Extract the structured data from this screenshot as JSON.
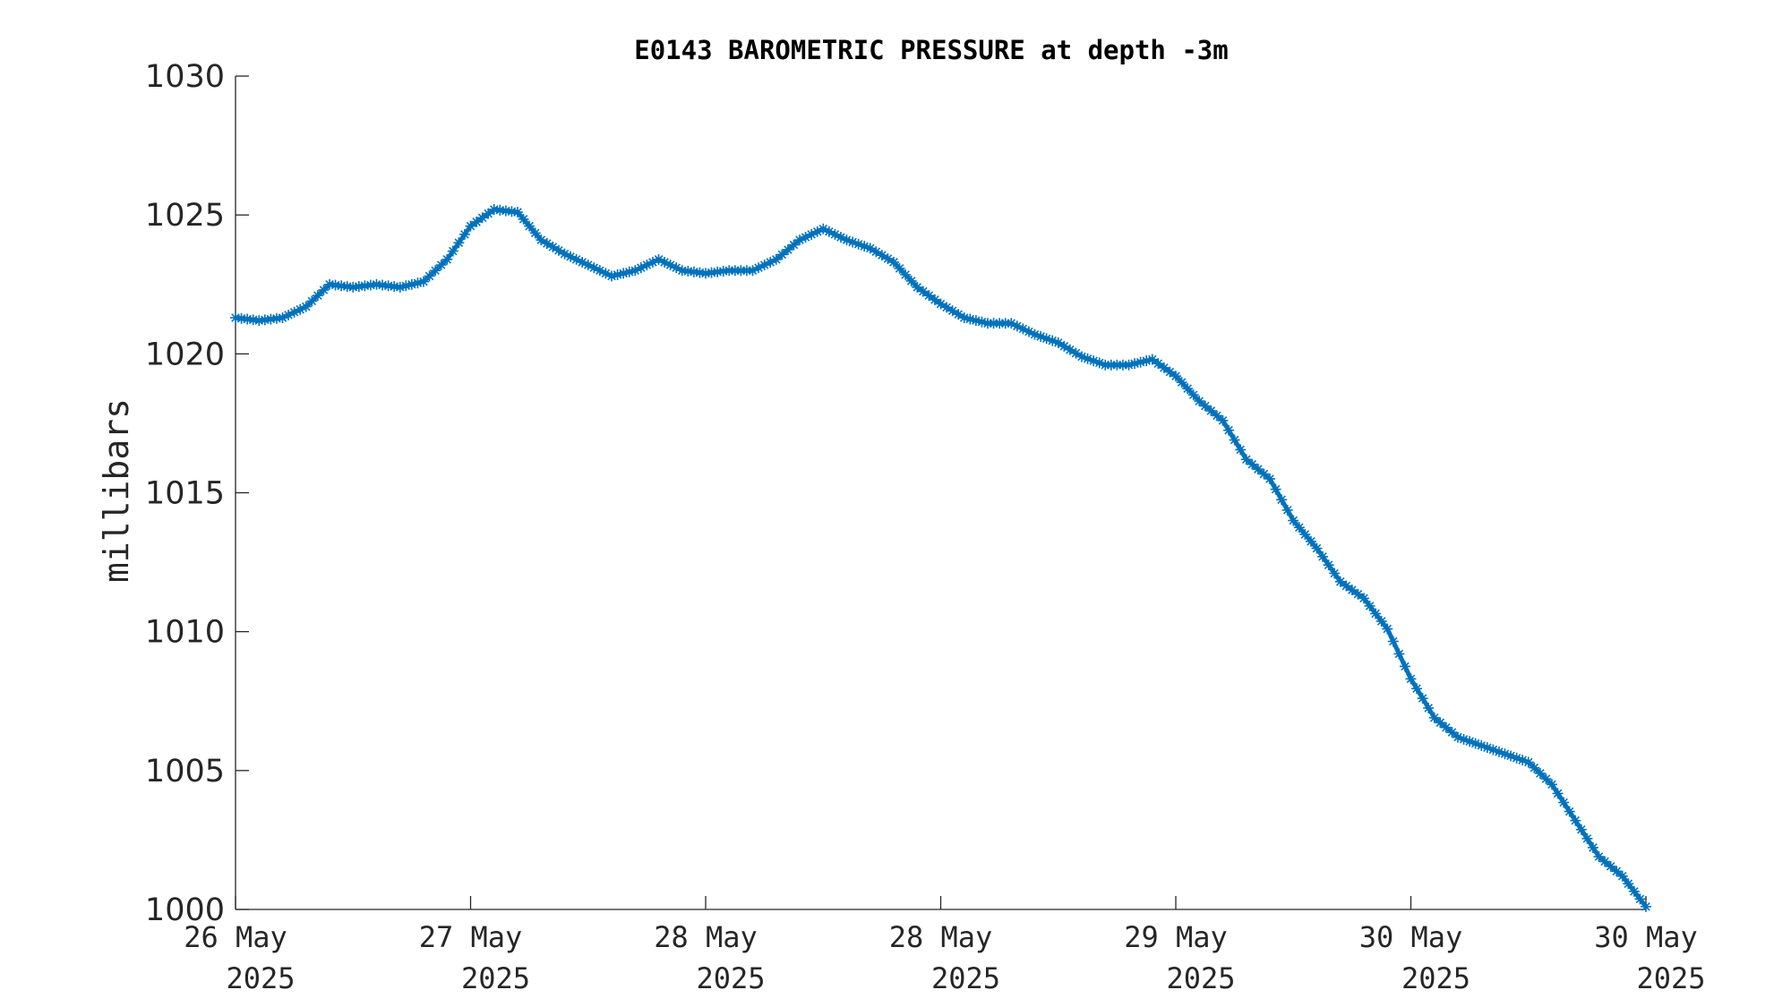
{
  "chart_data": {
    "type": "line",
    "title": "E0143 BAROMETRIC PRESSURE at depth -3m",
    "xlabel": "",
    "ylabel": "millibars",
    "ylim": [
      1000,
      1030
    ],
    "xlim": [
      0,
      6
    ],
    "yticks": [
      1000,
      1005,
      1010,
      1015,
      1020,
      1025,
      1030
    ],
    "xticks": [
      {
        "pos": 0,
        "day": "26 May",
        "year": "2025"
      },
      {
        "pos": 1,
        "day": "27 May",
        "year": "2025"
      },
      {
        "pos": 2,
        "day": "28 May",
        "year": "2025"
      },
      {
        "pos": 3,
        "day": "28 May",
        "year": "2025"
      },
      {
        "pos": 4,
        "day": "29 May",
        "year": "2025"
      },
      {
        "pos": 5,
        "day": "30 May",
        "year": "2025"
      },
      {
        "pos": 6,
        "day": "30 May",
        "year": "2025"
      }
    ],
    "marker": "asterisk",
    "series": [
      {
        "color": "#0072BD",
        "x": [
          0.0,
          0.1,
          0.2,
          0.3,
          0.4,
          0.5,
          0.6,
          0.7,
          0.8,
          0.9,
          1.0,
          1.1,
          1.2,
          1.3,
          1.4,
          1.5,
          1.6,
          1.7,
          1.8,
          1.9,
          2.0,
          2.1,
          2.2,
          2.3,
          2.4,
          2.5,
          2.6,
          2.7,
          2.8,
          2.9,
          3.0,
          3.1,
          3.2,
          3.3,
          3.4,
          3.5,
          3.6,
          3.7,
          3.8,
          3.9,
          4.0,
          4.1,
          4.2,
          4.3,
          4.4,
          4.5,
          4.6,
          4.7,
          4.8,
          4.9,
          5.0,
          5.1,
          5.2,
          5.3,
          5.4,
          5.5,
          5.6,
          5.7,
          5.8,
          5.9,
          6.0
        ],
        "y": [
          1021.3,
          1021.2,
          1021.3,
          1021.7,
          1022.5,
          1022.4,
          1022.5,
          1022.4,
          1022.6,
          1023.4,
          1024.6,
          1025.2,
          1025.1,
          1024.1,
          1023.6,
          1023.2,
          1022.8,
          1023.0,
          1023.4,
          1023.0,
          1022.9,
          1023.0,
          1023.0,
          1023.4,
          1024.1,
          1024.5,
          1024.1,
          1023.8,
          1023.3,
          1022.4,
          1021.8,
          1021.3,
          1021.1,
          1021.1,
          1020.7,
          1020.4,
          1019.9,
          1019.6,
          1019.6,
          1019.8,
          1019.2,
          1018.3,
          1017.6,
          1016.2,
          1015.5,
          1014.0,
          1013.0,
          1011.8,
          1011.2,
          1010.1,
          1008.3,
          1006.9,
          1006.2,
          1005.9,
          1005.6,
          1005.3,
          1004.5,
          1003.2,
          1001.9,
          1001.2,
          1000.1
        ]
      }
    ],
    "grid": false,
    "legend": "none"
  }
}
